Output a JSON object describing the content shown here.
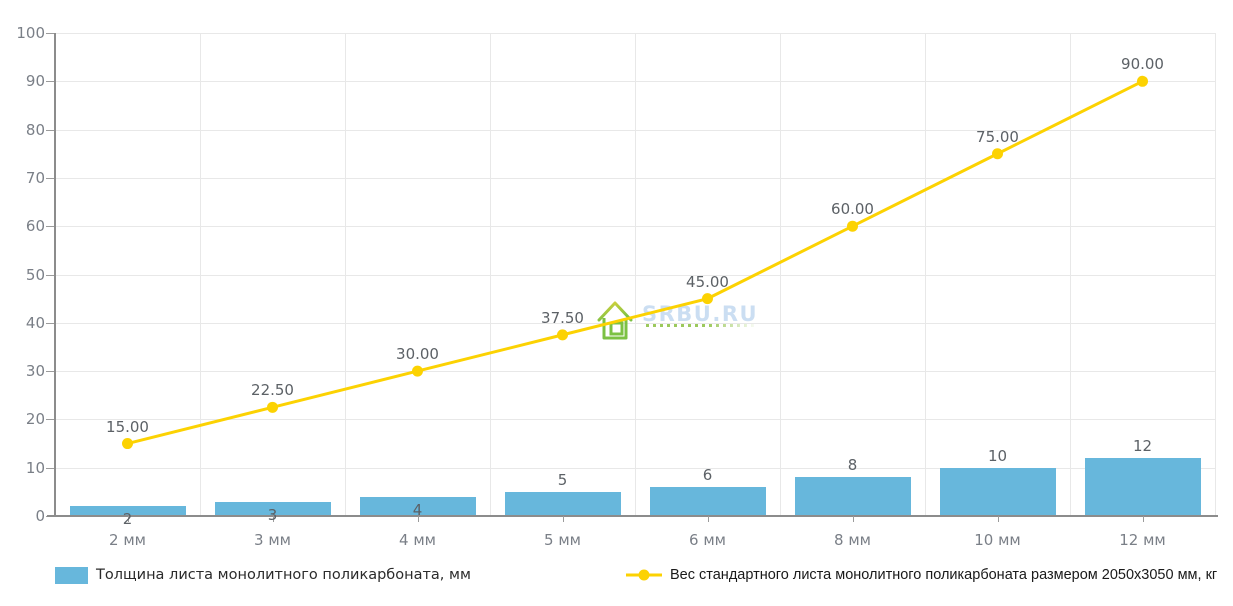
{
  "chart_data": {
    "type": "combo",
    "title": "",
    "xlabel": "",
    "ylabel": "",
    "categories": [
      "2 мм",
      "3 мм",
      "4 мм",
      "5 мм",
      "6 мм",
      "8 мм",
      "10 мм",
      "12 мм"
    ],
    "series": [
      {
        "name": "Толщина листа монолитного поликарбоната, мм",
        "type": "bar",
        "color": "#67b7dc",
        "values": [
          2,
          3,
          4,
          5,
          6,
          8,
          10,
          12
        ],
        "labels": [
          "2",
          "3",
          "4",
          "5",
          "6",
          "8",
          "10",
          "12"
        ]
      },
      {
        "name": "Вес стандартного листа монолитного поликарбоната размером 2050х3050 мм, кг",
        "type": "line",
        "color": "#fcd202",
        "values": [
          15,
          22.5,
          30,
          37.5,
          45,
          60,
          75,
          90
        ],
        "labels": [
          "15.00",
          "22.50",
          "30.00",
          "37.50",
          "45.00",
          "60.00",
          "75.00",
          "90.00"
        ]
      }
    ],
    "ylim": [
      0,
      100
    ],
    "ytick_step": 10,
    "ytick_labels": [
      "0",
      "10",
      "20",
      "30",
      "40",
      "50",
      "60",
      "70",
      "80",
      "90",
      "100"
    ],
    "grid": true,
    "legend_position": "bottom"
  },
  "watermark": {
    "text": "SRBU.RU"
  },
  "colors": {
    "bar": "#67b7dc",
    "line": "#fcd202",
    "grid": "#e8e8e8",
    "axis": "#8c8c8c",
    "axis_label": "#7a7f87",
    "value_label": "#5c6166",
    "watermark_text": "#92b9e3",
    "watermark_green": "#8dc63f"
  }
}
